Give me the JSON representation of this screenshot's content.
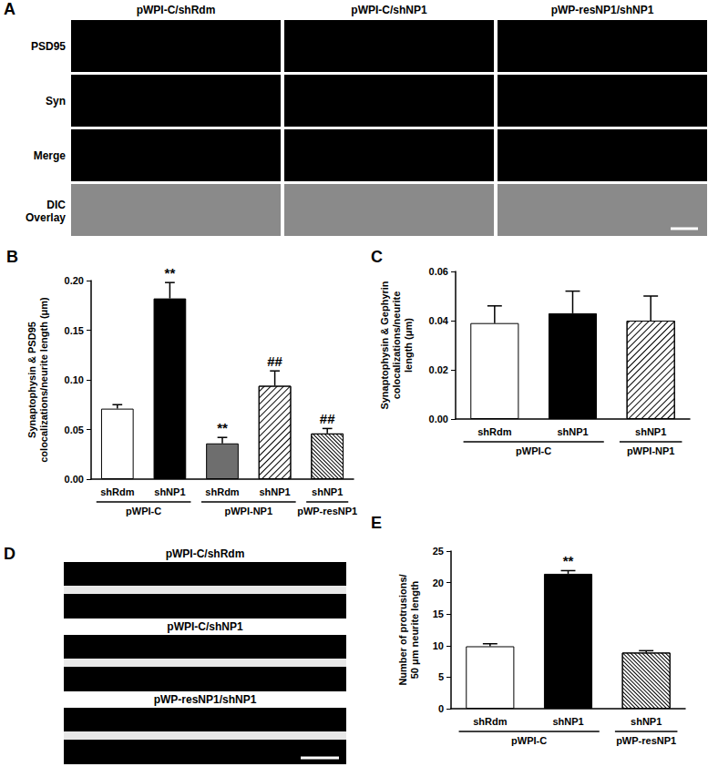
{
  "chart_data": [
    {
      "type": "bar",
      "title": "B",
      "y_label": "Synaptophysin & PSD95\ncolocalizations/neurite length (μm)",
      "categories": [
        "shRdm",
        "shNP1",
        "shRdm",
        "shNP1",
        "shNP1"
      ],
      "groups": [
        "pWPI-C",
        "pWPI-C",
        "pWPI-NP1",
        "pWPI-NP1",
        "pWP-resNP1"
      ],
      "values": [
        0.071,
        0.182,
        0.036,
        0.094,
        0.046
      ],
      "errors": [
        0.004,
        0.016,
        0.006,
        0.015,
        0.005
      ],
      "significance": [
        null,
        "**",
        "**",
        "##",
        "##"
      ],
      "colors": [
        "#ffffff",
        "#000000",
        "#6e6e6e",
        "#ffffff",
        "#ffffff"
      ],
      "ylim": [
        0,
        0.2
      ],
      "yticks": [
        {
          "value": 0,
          "label": "0.00"
        },
        {
          "value": 0.05,
          "label": "0.05"
        },
        {
          "value": 0.1,
          "label": "0.10"
        },
        {
          "value": 0.15,
          "label": "0.15"
        },
        {
          "value": 0.2,
          "label": "0.20"
        }
      ]
    },
    {
      "type": "bar",
      "title": "C",
      "y_label": "Synaptophysin & Gephyrin\ncolocalizations/neurite\nlength (μm)",
      "categories": [
        "shRdm",
        "shNP1",
        "shNP1"
      ],
      "groups": [
        "pWPI-C",
        "pWPI-C",
        "pWPI-NP1"
      ],
      "values": [
        0.039,
        0.043,
        0.04
      ],
      "errors": [
        0.007,
        0.009,
        0.01
      ],
      "significance": [
        null,
        null,
        null
      ],
      "colors": [
        "#ffffff",
        "#000000",
        "#ffffff"
      ],
      "ylim": [
        0,
        0.06
      ],
      "yticks": [
        {
          "value": 0,
          "label": "0.00"
        },
        {
          "value": 0.02,
          "label": "0.02"
        },
        {
          "value": 0.04,
          "label": "0.04"
        },
        {
          "value": 0.06,
          "label": "0.06"
        }
      ]
    },
    {
      "type": "bar",
      "title": "E",
      "y_label": "Number of protrusions/\n50 μm neurite length",
      "categories": [
        "shRdm",
        "shNP1",
        "shNP1"
      ],
      "groups": [
        "pWPI-C",
        "pWPI-C",
        "pWP-resNP1"
      ],
      "values": [
        9.9,
        21.4,
        8.9
      ],
      "errors": [
        0.4,
        0.5,
        0.3
      ],
      "significance": [
        null,
        "**",
        null
      ],
      "colors": [
        "#ffffff",
        "#000000",
        "#ffffff"
      ],
      "ylim": [
        0,
        25
      ],
      "yticks": [
        0,
        5,
        10,
        15,
        20,
        25
      ]
    }
  ],
  "image_panels": [
    {
      "panel": "A",
      "columns": [
        "pWPI-C/shRdm",
        "pWPI-C/shNP1",
        "pWP-resNP1/shNP1"
      ],
      "rows": [
        "PSD95",
        "Syn",
        "Merge",
        "DIC Overlay"
      ]
    },
    {
      "panel": "D",
      "rows": [
        "pWPI-C/shRdm",
        "pWPI-C/shNP1",
        "pWP-resNP1/shNP1"
      ]
    }
  ]
}
